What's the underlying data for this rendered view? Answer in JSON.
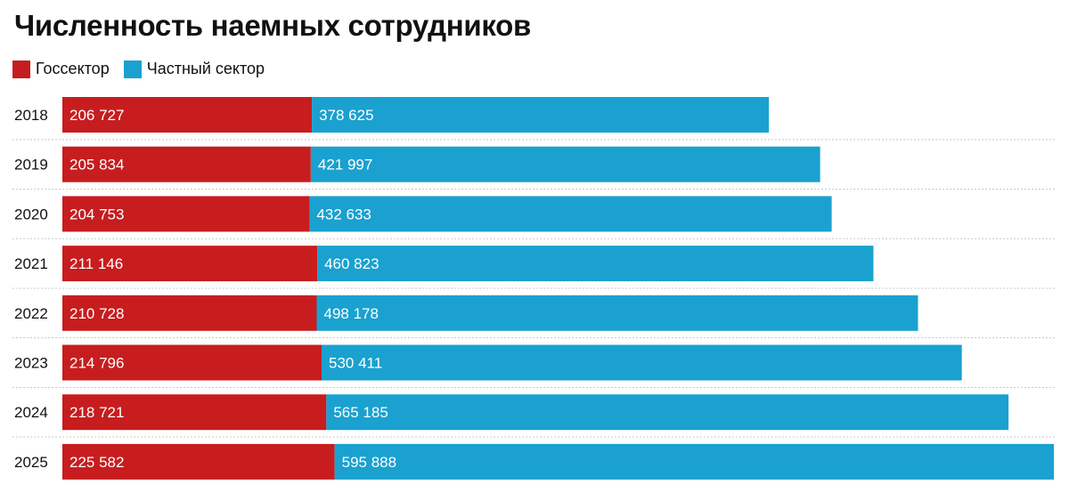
{
  "chart_data": {
    "type": "bar",
    "orientation": "horizontal",
    "stacked": true,
    "title": "Численность наемных сотрудников",
    "categories": [
      "2018",
      "2019",
      "2020",
      "2021",
      "2022",
      "2023",
      "2024",
      "2025"
    ],
    "series": [
      {
        "name": "Госсектор",
        "color": "#c71d1f",
        "values": [
          206727,
          205834,
          204753,
          211146,
          210728,
          214796,
          218721,
          225582
        ],
        "labels": [
          "206 727",
          "205 834",
          "204 753",
          "211 146",
          "210 728",
          "214 796",
          "218 721",
          "225 582"
        ]
      },
      {
        "name": "Частный сектор",
        "color": "#1aa1cf",
        "values": [
          378625,
          421997,
          432633,
          460823,
          498178,
          530411,
          565185,
          595888
        ],
        "labels": [
          "378 625",
          "421 997",
          "432 633",
          "460 823",
          "498 178",
          "530 411",
          "565 185",
          "595 888"
        ]
      }
    ],
    "legend_position": "top-left",
    "data_labels": "inside-left",
    "xlim": [
      0,
      821470
    ],
    "grid": false
  }
}
